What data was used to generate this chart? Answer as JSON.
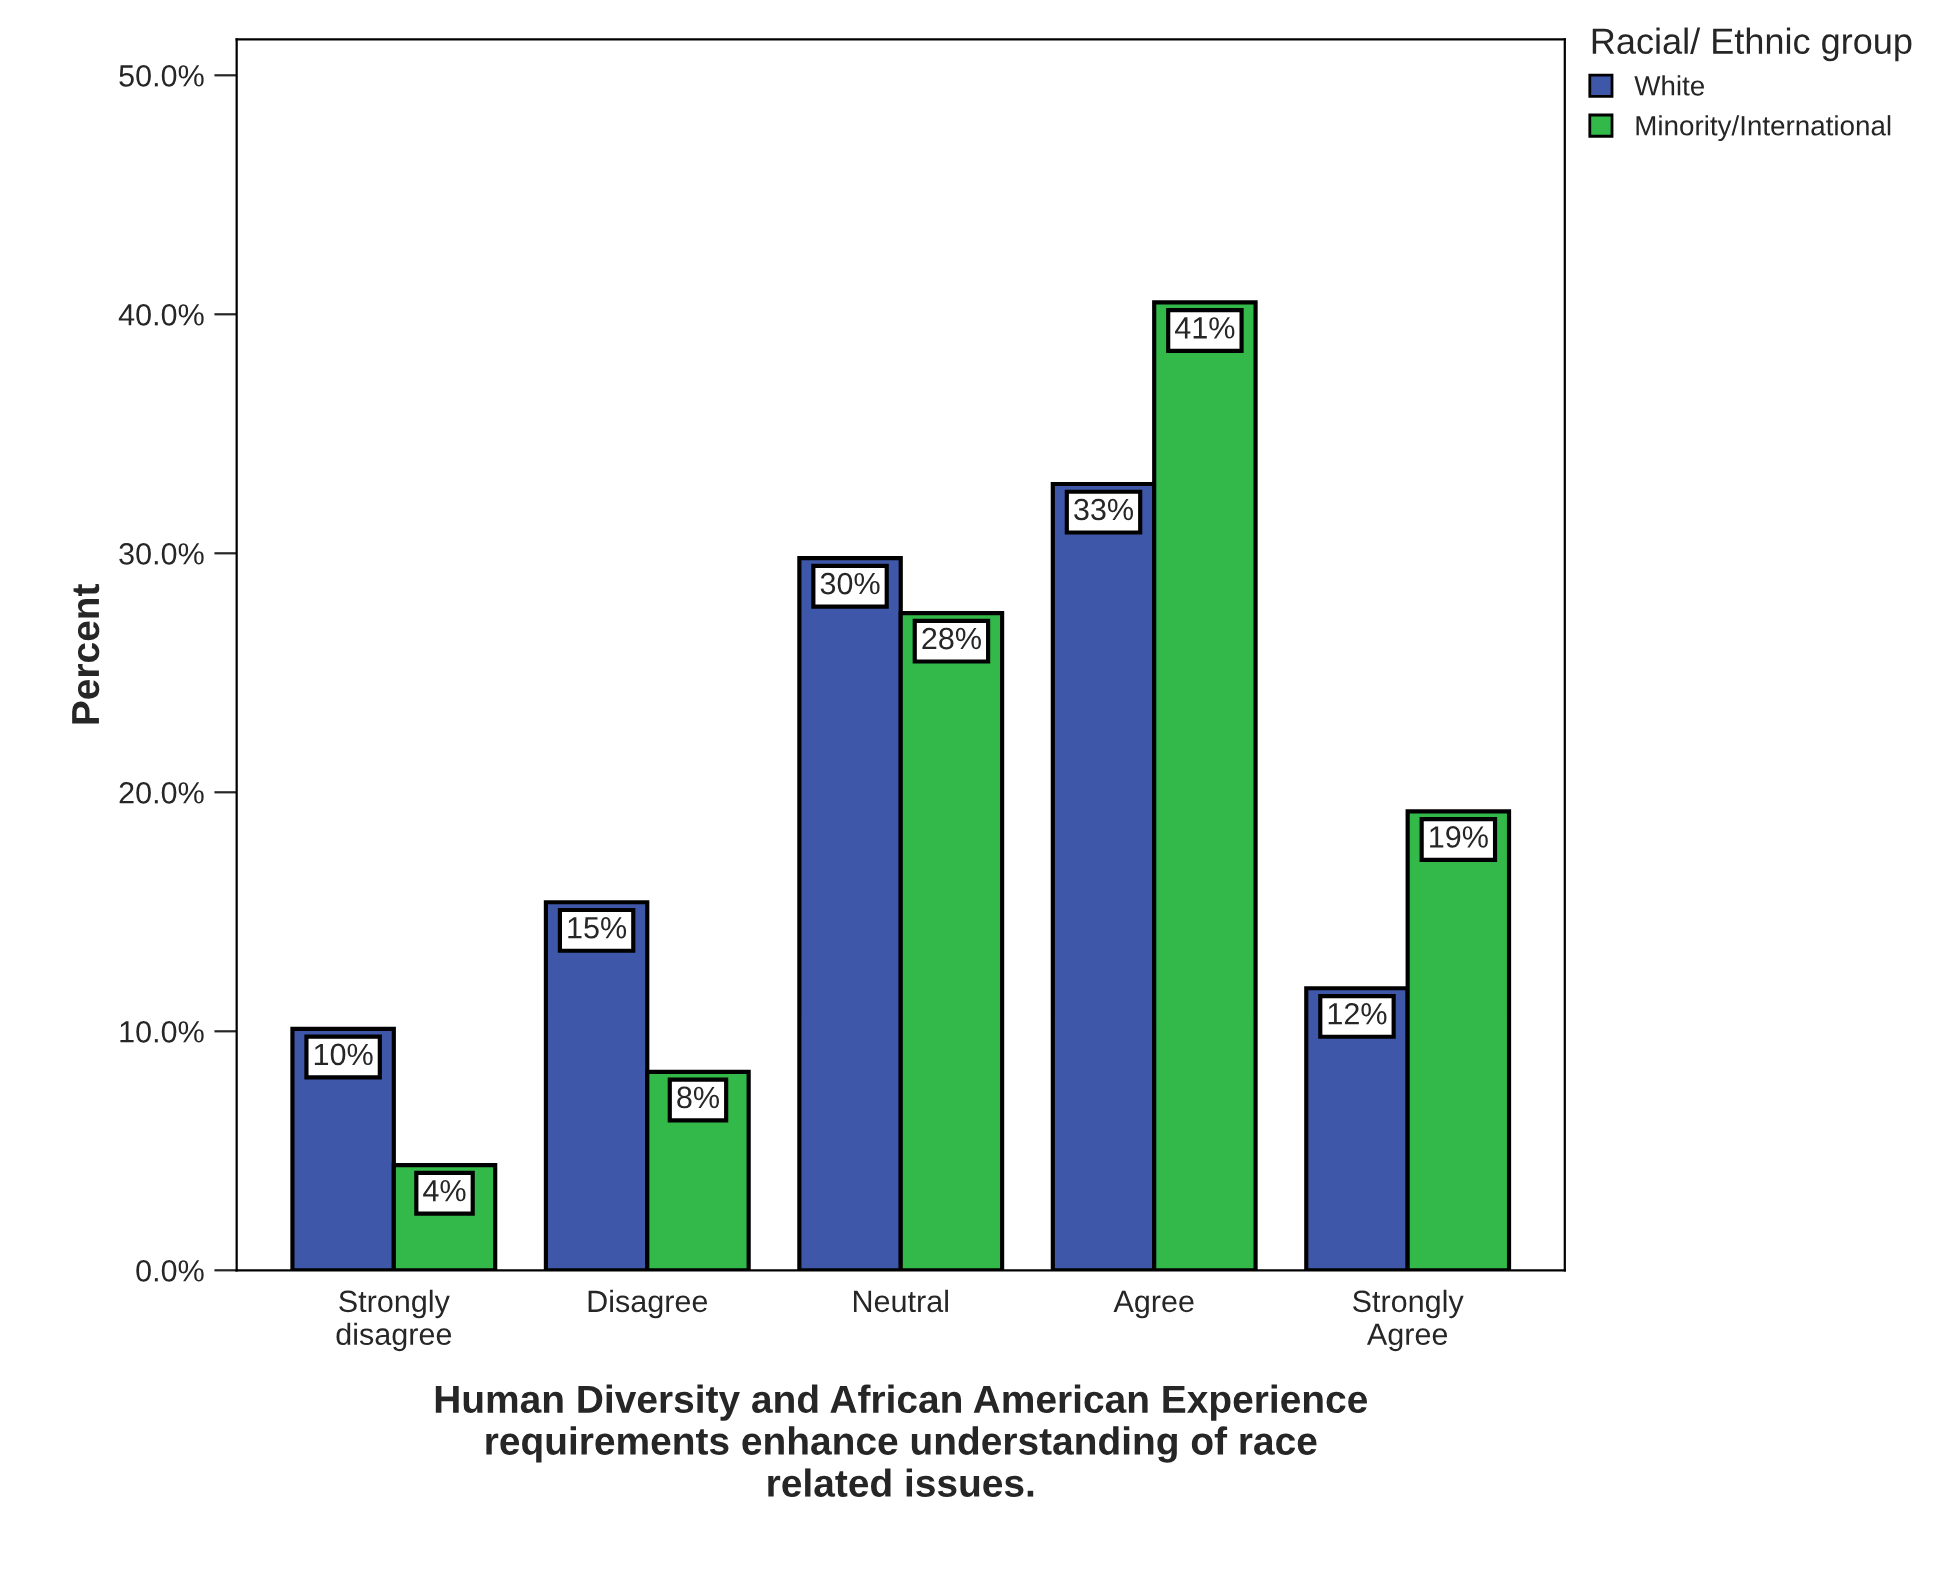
{
  "chart_data": {
    "type": "bar",
    "categories": [
      "Strongly\ndisagree",
      "Disagree",
      "Neutral",
      "Agree",
      "Strongly\nAgree"
    ],
    "xlabel": "Human Diversity and African American Experience\nrequirements enhance understanding of race\nrelated issues.",
    "ylabel": "Percent",
    "legend_title": "Racial/ Ethnic group",
    "series": [
      {
        "name": "White",
        "color": "#3f57a9",
        "values": [
          10.1,
          15.4,
          29.8,
          32.9,
          11.8
        ],
        "value_labels": [
          "10%",
          "15%",
          "30%",
          "33%",
          "12%"
        ]
      },
      {
        "name": "Minority/International",
        "color": "#33b84a",
        "values": [
          4.4,
          8.3,
          27.5,
          40.5,
          19.2
        ],
        "value_labels": [
          "4%",
          "8%",
          "28%",
          "41%",
          "19%"
        ]
      }
    ],
    "ylim": [
      0,
      51.5
    ],
    "yticks": [
      {
        "value": 0,
        "label": "0.0%"
      },
      {
        "value": 10,
        "label": "10.0%"
      },
      {
        "value": 20,
        "label": "20.0%"
      },
      {
        "value": 30,
        "label": "30.0%"
      },
      {
        "value": 40,
        "label": "40.0%"
      },
      {
        "value": 50,
        "label": "50.0%"
      }
    ],
    "grid": false,
    "legend": "top right"
  }
}
